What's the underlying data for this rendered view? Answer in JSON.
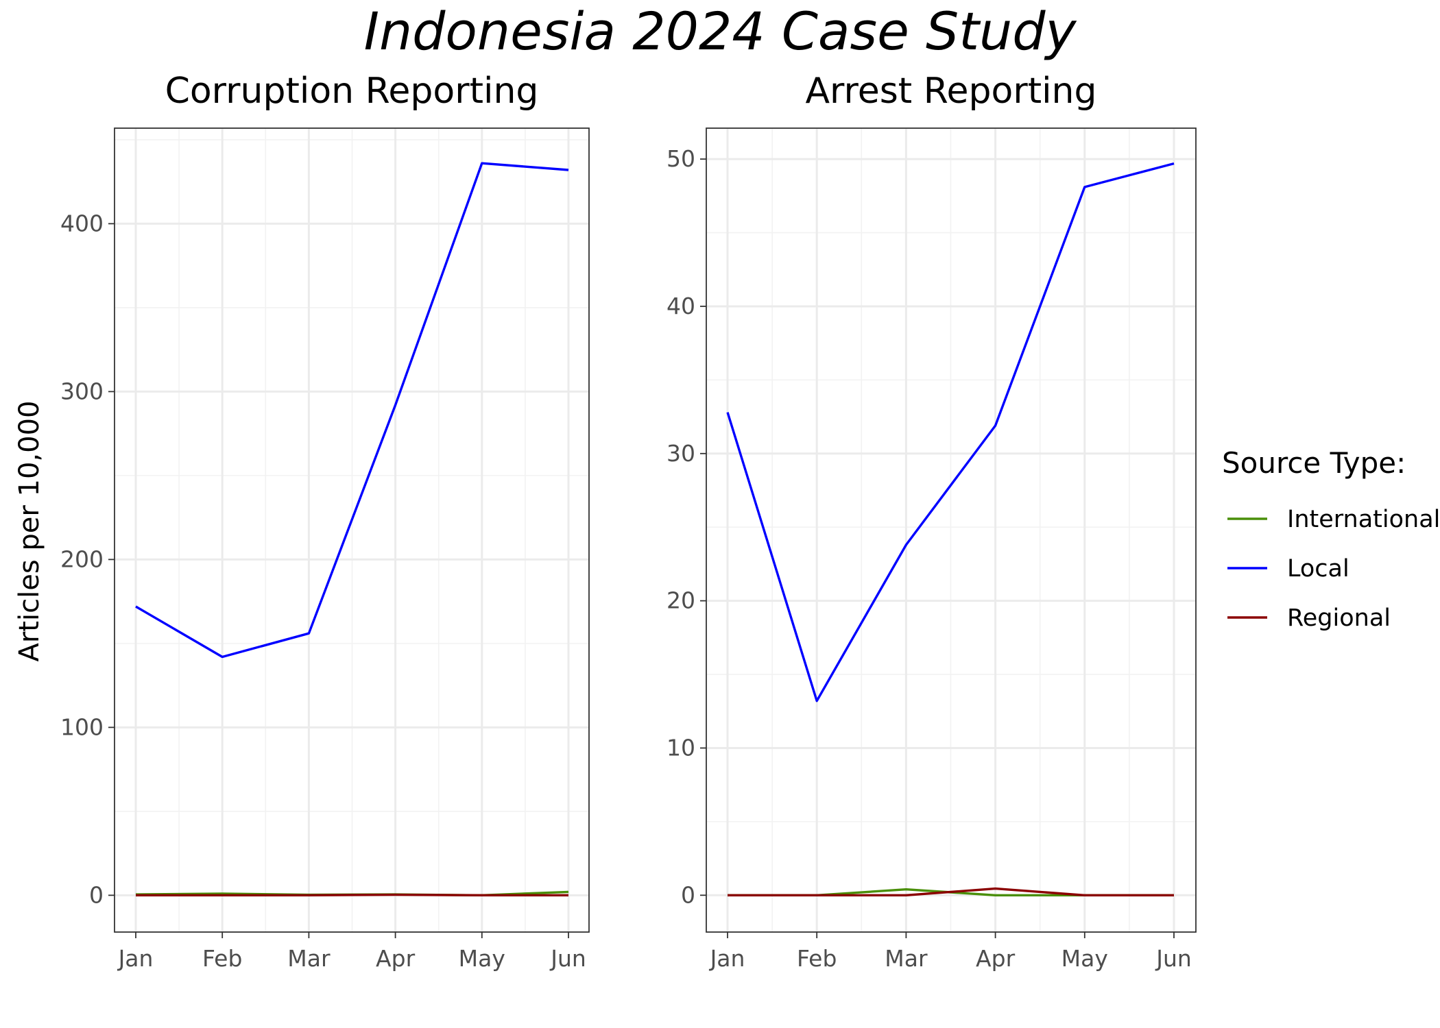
{
  "chart_data": {
    "type": "line",
    "title": "Indonesia 2024 Case Study",
    "ylabel": "Articles per 10,000",
    "months": [
      "Jan",
      "Feb",
      "Mar",
      "Apr",
      "May",
      "Jun"
    ],
    "legend": {
      "title": "Source Type:",
      "position": "right",
      "entries": [
        {
          "name": "International",
          "color": "#4a8f0a"
        },
        {
          "name": "Local",
          "color": "#0000ff"
        },
        {
          "name": "Regional",
          "color": "#8b0000"
        }
      ]
    },
    "panels": [
      {
        "title": "Corruption Reporting",
        "ylim": [
          -21.9,
          456.9
        ],
        "yticks": [
          0,
          100,
          200,
          300,
          400
        ],
        "yticklabels": [
          "0",
          "100",
          "200",
          "300",
          "400"
        ],
        "grid": true,
        "series": [
          {
            "name": "International",
            "values": [
              0.5,
              1.0,
              0.3,
              0.5,
              0,
              2.0
            ]
          },
          {
            "name": "Local",
            "values": [
              172,
              142,
              156,
              292,
              436,
              432
            ]
          },
          {
            "name": "Regional",
            "values": [
              0,
              0,
              0,
              0.3,
              0,
              0
            ]
          }
        ]
      },
      {
        "title": "Arrest Reporting",
        "ylim": [
          -2.5,
          52.1
        ],
        "yticks": [
          0,
          10,
          20,
          30,
          40,
          50
        ],
        "yticklabels": [
          "0",
          "10",
          "20",
          "30",
          "40",
          "50"
        ],
        "grid": true,
        "series": [
          {
            "name": "International",
            "values": [
              0,
              0,
              0.4,
              0,
              0,
              0
            ]
          },
          {
            "name": "Local",
            "values": [
              32.8,
              13.2,
              23.8,
              31.9,
              48.1,
              49.7
            ]
          },
          {
            "name": "Regional",
            "values": [
              0,
              0,
              0,
              0.45,
              0,
              0
            ]
          }
        ]
      }
    ]
  }
}
